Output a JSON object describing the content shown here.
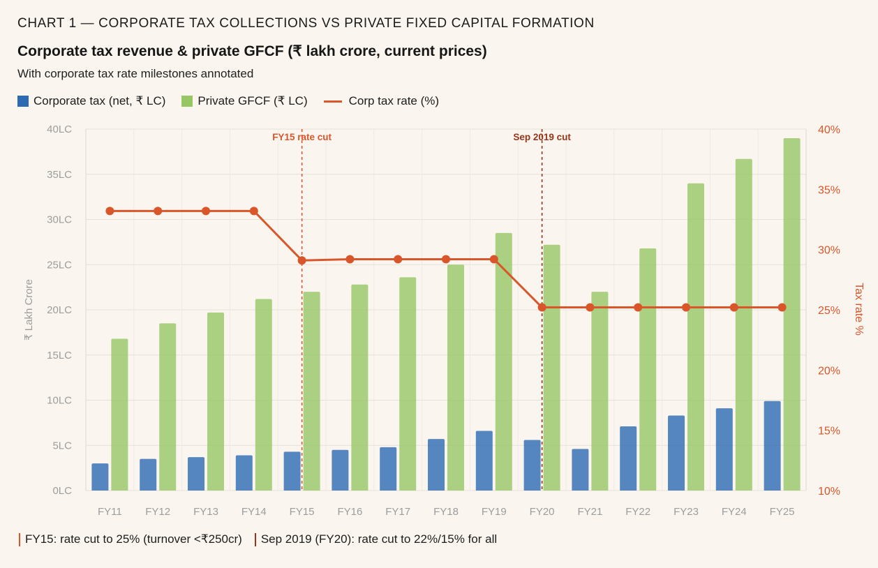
{
  "header": {
    "eyebrow": "CHART 1 — CORPORATE TAX COLLECTIONS VS PRIVATE FIXED CAPITAL FORMATION"
  },
  "chart_data": {
    "type": "bar",
    "title": "Corporate tax revenue & private GFCF (₹ lakh crore, current prices)",
    "subtitle": "With corporate tax rate milestones annotated",
    "categories": [
      "FY11",
      "FY12",
      "FY13",
      "FY14",
      "FY15",
      "FY16",
      "FY17",
      "FY18",
      "FY19",
      "FY20",
      "FY21",
      "FY22",
      "FY23",
      "FY24",
      "FY25"
    ],
    "series": [
      {
        "name": "Corporate tax (net, ₹ LC)",
        "type": "bar",
        "axis": "left",
        "color": "#2D6AB3",
        "values": [
          3.0,
          3.5,
          3.7,
          3.9,
          4.3,
          4.5,
          4.8,
          5.7,
          6.6,
          5.6,
          4.6,
          7.1,
          8.3,
          9.1,
          9.9
        ]
      },
      {
        "name": "Private GFCF (₹ LC)",
        "type": "bar",
        "axis": "left",
        "color": "#97C765",
        "values": [
          16.8,
          18.5,
          19.7,
          21.2,
          22.0,
          22.8,
          23.6,
          25.0,
          28.5,
          27.2,
          22.0,
          26.8,
          34.0,
          36.7,
          39.0
        ]
      },
      {
        "name": "Corp tax rate (%)",
        "type": "line",
        "axis": "right",
        "color": "#D9562B",
        "values": [
          33.2,
          33.2,
          33.2,
          33.2,
          29.1,
          29.2,
          29.2,
          29.2,
          29.2,
          25.2,
          25.2,
          25.2,
          25.2,
          25.2,
          25.2
        ]
      }
    ],
    "xlabel": "",
    "ylabel": "₹ Lakh Crore",
    "y2label": "Tax rate %",
    "ylim": [
      0,
      40
    ],
    "y2lim": [
      10,
      40
    ],
    "yticks": [
      {
        "value": 40,
        "label": "40LC"
      },
      {
        "value": 35,
        "label": "35LC"
      },
      {
        "value": 30,
        "label": "30LC"
      },
      {
        "value": 25,
        "label": "25LC"
      },
      {
        "value": 20,
        "label": "20LC"
      },
      {
        "value": 15,
        "label": "15LC"
      },
      {
        "value": 10,
        "label": "10LC"
      },
      {
        "value": 5,
        "label": "5LC"
      },
      {
        "value": 0,
        "label": "0LC"
      }
    ],
    "y2ticks": [
      {
        "value": 40,
        "label": "40%"
      },
      {
        "value": 35,
        "label": "35%"
      },
      {
        "value": 30,
        "label": "30%"
      },
      {
        "value": 25,
        "label": "25%"
      },
      {
        "value": 20,
        "label": "20%"
      },
      {
        "value": 15,
        "label": "15%"
      },
      {
        "value": 10,
        "label": "10%"
      }
    ],
    "grid": true,
    "legend_position": "top-left",
    "annotations": [
      {
        "category": "FY15",
        "label": "FY15 rate cut",
        "note": "FY15: rate cut to 25% (turnover <₹250cr)",
        "color": "#D9562B"
      },
      {
        "category": "FY20",
        "label": "Sep 2019 cut",
        "note": "Sep 2019 (FY20): rate cut to 22%/15% for all",
        "color": "#963519"
      }
    ]
  }
}
